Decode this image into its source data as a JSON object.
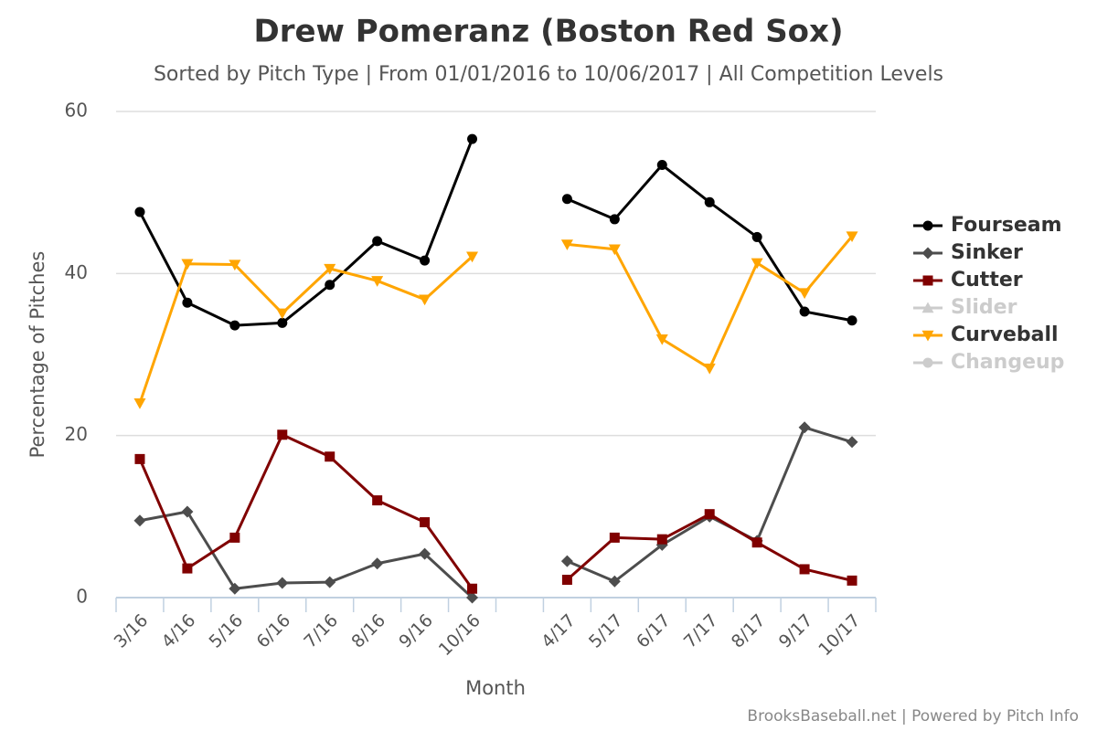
{
  "chart_data": {
    "type": "line",
    "title": "Drew Pomeranz (Boston Red Sox)",
    "subtitle": "Sorted by Pitch Type | From 01/01/2016 to 10/06/2017 | All Competition Levels",
    "xlabel": "Month",
    "ylabel": "Percentage of Pitches",
    "credit": "BrooksBaseball.net | Powered by Pitch Info",
    "categories": [
      "3/16",
      "4/16",
      "5/16",
      "6/16",
      "7/16",
      "8/16",
      "9/16",
      "10/16",
      null,
      "4/17",
      "5/17",
      "6/17",
      "7/17",
      "8/17",
      "9/17",
      "10/17"
    ],
    "ylim": [
      0,
      60
    ],
    "yticks": [
      0,
      20,
      40,
      60
    ],
    "grid": true,
    "legend": "right",
    "series": [
      {
        "name": "Fourseam",
        "color": "#000000",
        "marker": "circle",
        "visible": true,
        "values": [
          47.6,
          36.4,
          33.6,
          33.9,
          38.6,
          44.0,
          41.6,
          56.6,
          null,
          49.2,
          46.7,
          53.4,
          48.8,
          44.5,
          35.3,
          34.2
        ]
      },
      {
        "name": "Sinker",
        "color": "#4d4d4d",
        "marker": "diamond",
        "visible": true,
        "values": [
          9.5,
          10.6,
          1.1,
          1.8,
          1.9,
          4.2,
          5.4,
          0,
          null,
          4.5,
          2.0,
          6.5,
          10.0,
          7.0,
          21.0,
          19.2
        ]
      },
      {
        "name": "Cutter",
        "color": "#800000",
        "marker": "square",
        "visible": true,
        "values": [
          17.1,
          3.6,
          7.4,
          20.1,
          17.4,
          12.0,
          9.3,
          1.1,
          null,
          2.2,
          7.4,
          7.2,
          10.3,
          6.8,
          3.5,
          2.1
        ]
      },
      {
        "name": "Slider",
        "color": "#cccccc",
        "marker": "triangle",
        "visible": false,
        "values": [
          null,
          null,
          null,
          null,
          null,
          null,
          null,
          null,
          null,
          null,
          null,
          null,
          null,
          null,
          null,
          null
        ]
      },
      {
        "name": "Curveball",
        "color": "#ffa500",
        "marker": "triangle-down",
        "visible": true,
        "values": [
          24.0,
          41.2,
          41.1,
          35.1,
          40.6,
          39.1,
          36.8,
          42.1,
          null,
          43.6,
          43.0,
          31.9,
          28.3,
          41.3,
          37.6,
          44.6
        ]
      },
      {
        "name": "Changeup",
        "color": "#cccccc",
        "marker": "circle",
        "visible": false,
        "values": [
          null,
          null,
          null,
          null,
          null,
          null,
          null,
          null,
          null,
          null,
          null,
          null,
          null,
          null,
          null,
          null
        ]
      }
    ]
  }
}
